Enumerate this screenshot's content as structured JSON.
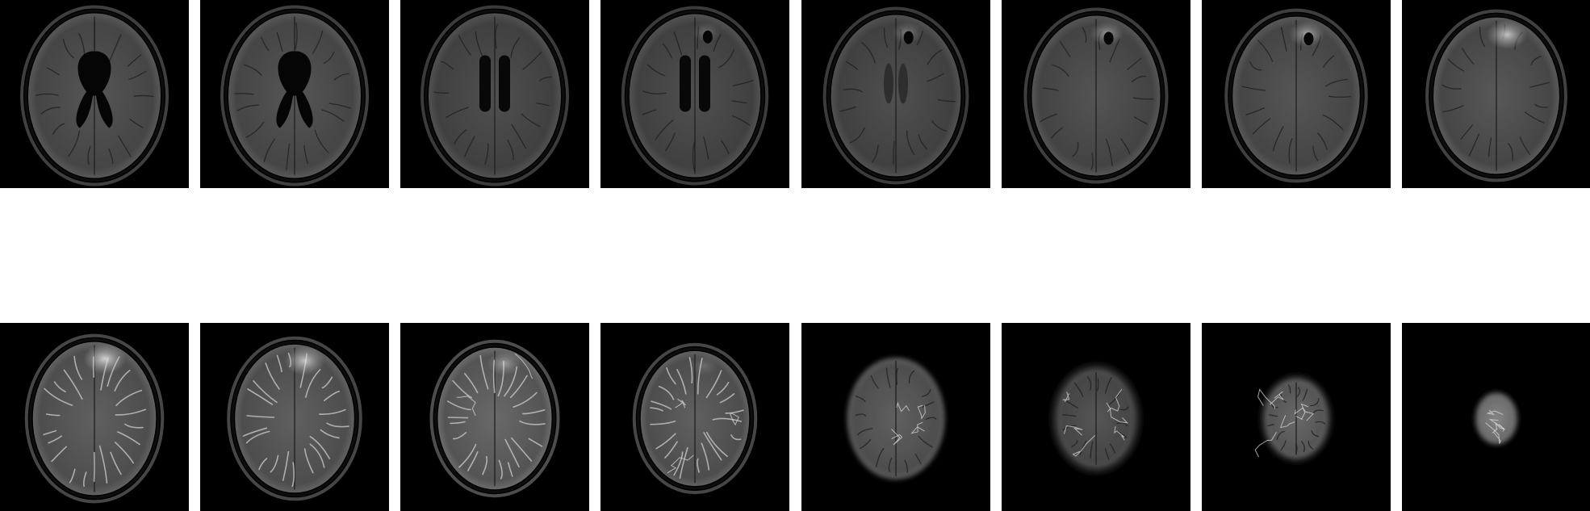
{
  "figure": {
    "description_rows": 2,
    "columns": 8,
    "background_color": "#ffffff",
    "tile_color": "#000000"
  },
  "slices": [
    {
      "row": 1,
      "index": 1,
      "kind": "ventricles",
      "brightness": 0.45,
      "scale": 1.0,
      "lesion": 0.0,
      "vessels": 0
    },
    {
      "row": 1,
      "index": 2,
      "kind": "ventricles",
      "brightness": 0.45,
      "scale": 1.0,
      "lesion": 0.0,
      "vessels": 0
    },
    {
      "row": 1,
      "index": 3,
      "kind": "ventricles-thin",
      "brightness": 0.42,
      "scale": 1.0,
      "lesion": 0.0,
      "vessels": 0
    },
    {
      "row": 1,
      "index": 4,
      "kind": "ventricles-thin",
      "brightness": 0.42,
      "scale": 0.99,
      "lesion": 0.25,
      "vessels": 0
    },
    {
      "row": 1,
      "index": 5,
      "kind": "centrum",
      "brightness": 0.42,
      "scale": 0.98,
      "lesion": 0.35,
      "vessels": 0
    },
    {
      "row": 1,
      "index": 6,
      "kind": "sulci",
      "brightness": 0.44,
      "scale": 0.97,
      "lesion": 0.5,
      "vessels": 0
    },
    {
      "row": 1,
      "index": 7,
      "kind": "sulci",
      "brightness": 0.45,
      "scale": 0.96,
      "lesion": 0.6,
      "vessels": 0
    },
    {
      "row": 1,
      "index": 8,
      "kind": "sulci",
      "brightness": 0.46,
      "scale": 0.95,
      "lesion": 0.8,
      "vessels": 0
    },
    {
      "row": 2,
      "index": 9,
      "kind": "gyri",
      "brightness": 0.5,
      "scale": 0.93,
      "lesion": 0.9,
      "vessels": 0
    },
    {
      "row": 2,
      "index": 10,
      "kind": "gyri",
      "brightness": 0.5,
      "scale": 0.9,
      "lesion": 0.8,
      "vessels": 0
    },
    {
      "row": 2,
      "index": 11,
      "kind": "gyri",
      "brightness": 0.55,
      "scale": 0.86,
      "lesion": 0.5,
      "vessels": 2
    },
    {
      "row": 2,
      "index": 12,
      "kind": "gyri",
      "brightness": 0.5,
      "scale": 0.82,
      "lesion": 0.2,
      "vessels": 3
    },
    {
      "row": 2,
      "index": 13,
      "kind": "vertex",
      "brightness": 0.5,
      "scale": 0.74,
      "lesion": 0.0,
      "vessels": 4
    },
    {
      "row": 2,
      "index": 14,
      "kind": "vertex-noisy",
      "brightness": 0.45,
      "scale": 0.6,
      "lesion": 0.0,
      "vessels": 6
    },
    {
      "row": 2,
      "index": 15,
      "kind": "vertex-noisy",
      "brightness": 0.55,
      "scale": 0.48,
      "lesion": 0.0,
      "vessels": 6
    },
    {
      "row": 2,
      "index": 16,
      "kind": "apex",
      "brightness": 0.7,
      "scale": 0.3,
      "lesion": 0.0,
      "vessels": 4
    }
  ]
}
